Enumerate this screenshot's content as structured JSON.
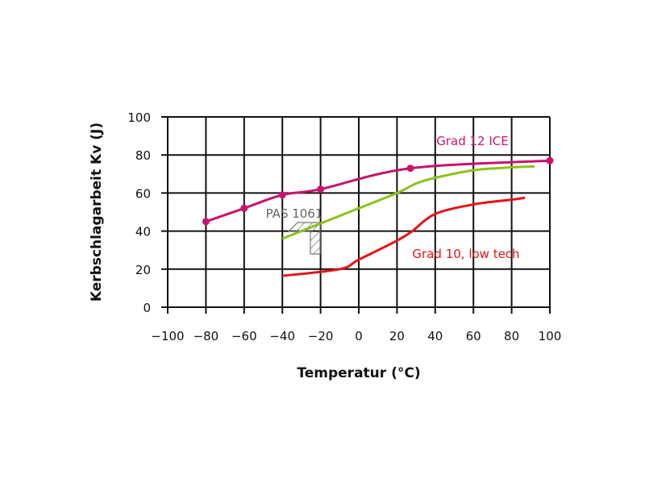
{
  "chart_data": {
    "type": "line",
    "title": "",
    "xlabel": "Temperatur (°C)",
    "ylabel": "Kerbschlagarbeit Kv (J)",
    "xlim": [
      -100,
      100
    ],
    "ylim": [
      0,
      100
    ],
    "xticks": [
      -100,
      -80,
      -60,
      -40,
      -20,
      0,
      20,
      40,
      60,
      80,
      100
    ],
    "xtick_labels": [
      "−100",
      "−80",
      "−60",
      "−40",
      "−20",
      "0",
      "20",
      "40",
      "60",
      "80",
      "100"
    ],
    "yticks": [
      0,
      20,
      40,
      60,
      80,
      100
    ],
    "ytick_labels": [
      "0",
      "20",
      "40",
      "60",
      "80",
      "100"
    ],
    "grid": true,
    "series": [
      {
        "name": "Grad 12 ICE",
        "color": "#c8136e",
        "markers": true,
        "x": [
          -80,
          -60,
          -40,
          -20,
          27,
          100
        ],
        "y": [
          45,
          52,
          59,
          62,
          73,
          77
        ]
      },
      {
        "name": "",
        "color": "#8cc21a",
        "markers": false,
        "x": [
          -40,
          -20,
          0,
          20,
          30,
          40,
          60,
          80,
          92
        ],
        "y": [
          36,
          44,
          52,
          60,
          65,
          68,
          72,
          73.5,
          74
        ]
      },
      {
        "name": "Grad 10, low tech",
        "color": "#e3141b",
        "markers": false,
        "x": [
          -40,
          -10,
          0,
          20,
          28,
          40,
          60,
          80,
          87
        ],
        "y": [
          16.5,
          20,
          25,
          35,
          40,
          49,
          54,
          56.5,
          57.5
        ]
      }
    ],
    "annotations": [
      {
        "text": "PAS 1061",
        "color": "#666666"
      }
    ]
  }
}
